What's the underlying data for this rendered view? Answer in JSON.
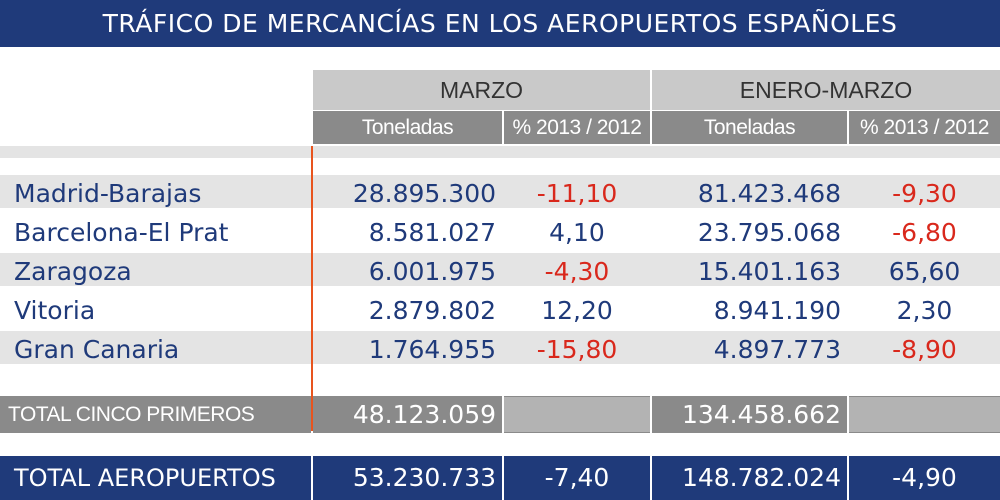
{
  "title": "TRÁFICO DE MERCANCÍAS EN LOS AEROPUERTOS ESPAÑOLES",
  "header": {
    "group_marzo": "MARZO",
    "group_enero_marzo": "ENERO-MARZO",
    "col_toneladas": "Toneladas",
    "col_pct": "% 2013 / 2012"
  },
  "rows": [
    {
      "name": "Madrid-Barajas",
      "marzo_t": "28.895.300",
      "marzo_pct": "-11,10",
      "em_t": "81.423.468",
      "em_pct": "-9,30"
    },
    {
      "name": "Barcelona-El Prat",
      "marzo_t": "8.581.027",
      "marzo_pct": "4,10",
      "em_t": "23.795.068",
      "em_pct": "-6,80"
    },
    {
      "name": "Zaragoza",
      "marzo_t": "6.001.975",
      "marzo_pct": "-4,30",
      "em_t": "15.401.163",
      "em_pct": "65,60"
    },
    {
      "name": "Vitoria",
      "marzo_t": "2.879.802",
      "marzo_pct": "12,20",
      "em_t": "8.941.190",
      "em_pct": "2,30"
    },
    {
      "name": "Gran Canaria",
      "marzo_t": "1.764.955",
      "marzo_pct": "-15,80",
      "em_t": "4.897.773",
      "em_pct": "-8,90"
    }
  ],
  "total_cinco": {
    "label": "TOTAL CINCO PRIMEROS",
    "marzo_t": "48.123.059",
    "em_t": "134.458.662"
  },
  "total_aeropuertos": {
    "label": "TOTAL AEROPUERTOS",
    "marzo_t": "53.230.733",
    "marzo_pct": "-7,40",
    "em_t": "148.782.024",
    "em_pct": "-4,90"
  },
  "colors": {
    "navy": "#1f3a7a",
    "negative": "#d9281c",
    "separator": "#e8541e",
    "header_light": "#c9c9c9",
    "header_dark": "#8a8a8a"
  }
}
